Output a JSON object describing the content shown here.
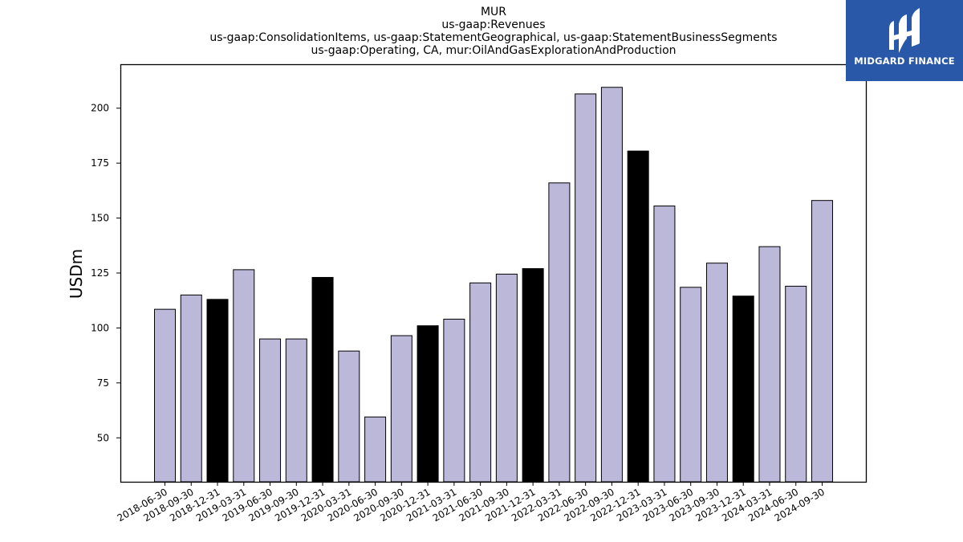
{
  "chart_data": {
    "type": "bar",
    "title_lines": [
      "MUR",
      "us-gaap:Revenues",
      "us-gaap:ConsolidationItems, us-gaap:StatementGeographical, us-gaap:StatementBusinessSegments",
      "us-gaap:Operating, CA, mur:OilAndGasExplorationAndProduction"
    ],
    "xlabel": "",
    "ylabel": "USDm",
    "ylim": [
      30,
      220
    ],
    "yticks": [
      50,
      75,
      100,
      125,
      150,
      175,
      200
    ],
    "grid": false,
    "categories": [
      "2018-06-30",
      "2018-09-30",
      "2018-12-31",
      "2019-03-31",
      "2019-06-30",
      "2019-09-30",
      "2019-12-31",
      "2020-03-31",
      "2020-06-30",
      "2020-09-30",
      "2020-12-31",
      "2021-03-31",
      "2021-06-30",
      "2021-09-30",
      "2021-12-31",
      "2022-03-31",
      "2022-06-30",
      "2022-09-30",
      "2022-12-31",
      "2023-03-31",
      "2023-06-30",
      "2023-09-30",
      "2023-12-31",
      "2024-03-31",
      "2024-06-30",
      "2024-09-30"
    ],
    "values": [
      108.5,
      115.0,
      113.0,
      126.5,
      95.0,
      95.0,
      123.0,
      89.5,
      59.5,
      96.5,
      101.0,
      104.0,
      120.5,
      124.5,
      127.0,
      166.0,
      206.5,
      209.5,
      180.5,
      155.5,
      118.5,
      129.5,
      114.5,
      137.0,
      119.0,
      158.0
    ],
    "colors": {
      "quarter": "#bcb8d9",
      "year_end": "#000000",
      "edge": "#000000"
    },
    "year_end_flags": [
      false,
      false,
      true,
      false,
      false,
      false,
      true,
      false,
      false,
      false,
      true,
      false,
      false,
      false,
      true,
      false,
      false,
      false,
      true,
      false,
      false,
      false,
      true,
      false,
      false,
      false
    ]
  },
  "logo": {
    "text": "MIDGARD FINANCE",
    "background": "#2a58a8"
  }
}
